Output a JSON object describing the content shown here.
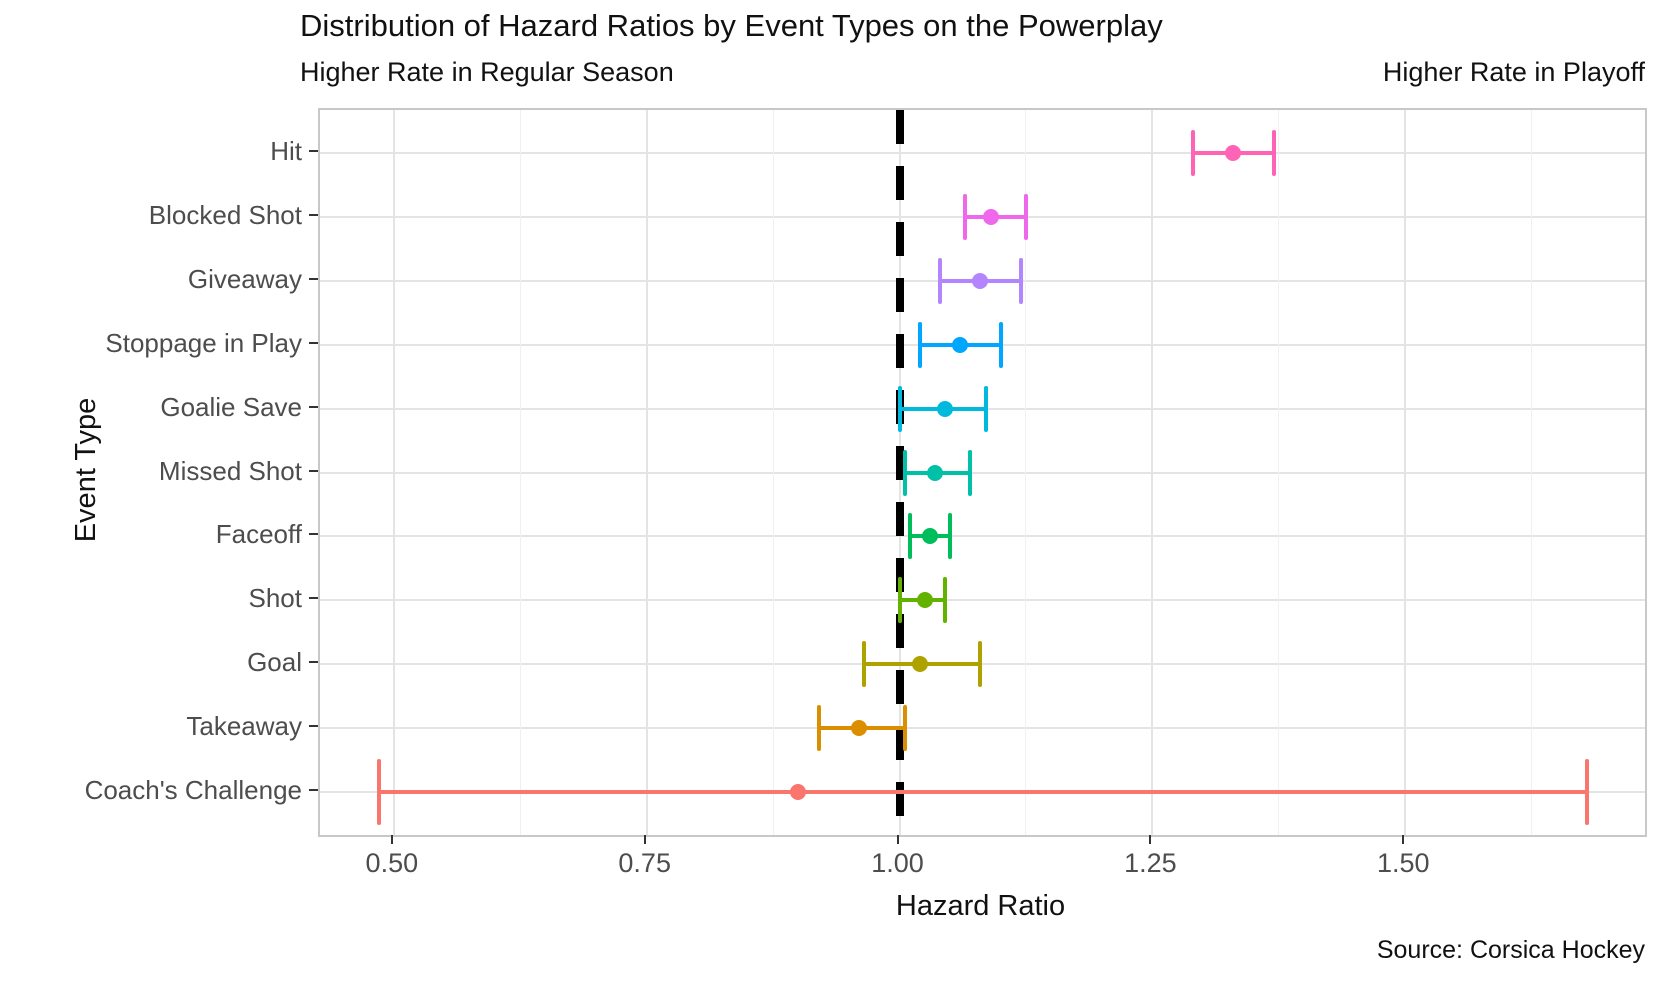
{
  "chart_data": {
    "type": "scatter",
    "subtype": "horizontal-dot-plot-with-error-bars",
    "title": "Distribution of Hazard Ratios by Event Types on the Powerplay",
    "subtitle_left": "Higher Rate in Regular Season",
    "subtitle_right": "Higher Rate in Playoff",
    "xlabel": "Hazard Ratio",
    "ylabel": "Event Type",
    "caption": "Source: Corsica Hockey",
    "xlim": [
      0.427,
      1.737
    ],
    "x_ticks": [
      "0.50",
      "0.75",
      "1.00",
      "1.25",
      "1.50"
    ],
    "x_tick_values": [
      0.5,
      0.75,
      1.0,
      1.25,
      1.5
    ],
    "x_minor_values": [
      0.625,
      0.875,
      1.125,
      1.375,
      1.625
    ],
    "grid": true,
    "legend": "none",
    "reference_line": {
      "x": 1.0,
      "style": "dashed",
      "color": "#000000"
    },
    "categories": [
      "Hit",
      "Blocked Shot",
      "Giveaway",
      "Stoppage in Play",
      "Goalie Save",
      "Missed Shot",
      "Faceoff",
      "Shot",
      "Goal",
      "Takeaway",
      "Coach's Challenge"
    ],
    "series": [
      {
        "label": "Hit",
        "value": 1.33,
        "ci_low": 1.29,
        "ci_high": 1.37,
        "color": "#FF63B6"
      },
      {
        "label": "Blocked Shot",
        "value": 1.09,
        "ci_low": 1.065,
        "ci_high": 1.125,
        "color": "#EF67EB"
      },
      {
        "label": "Giveaway",
        "value": 1.08,
        "ci_low": 1.04,
        "ci_high": 1.12,
        "color": "#B385FF"
      },
      {
        "label": "Stoppage in Play",
        "value": 1.06,
        "ci_low": 1.02,
        "ci_high": 1.1,
        "color": "#00A6FF"
      },
      {
        "label": "Goalie Save",
        "value": 1.045,
        "ci_low": 1.0,
        "ci_high": 1.085,
        "color": "#00BADE"
      },
      {
        "label": "Missed Shot",
        "value": 1.035,
        "ci_low": 1.005,
        "ci_high": 1.07,
        "color": "#00C1A7"
      },
      {
        "label": "Faceoff",
        "value": 1.03,
        "ci_low": 1.01,
        "ci_high": 1.05,
        "color": "#00BD5C"
      },
      {
        "label": "Shot",
        "value": 1.025,
        "ci_low": 1.0,
        "ci_high": 1.045,
        "color": "#64B200"
      },
      {
        "label": "Goal",
        "value": 1.02,
        "ci_low": 0.965,
        "ci_high": 1.08,
        "color": "#AEA200"
      },
      {
        "label": "Takeaway",
        "value": 0.96,
        "ci_low": 0.92,
        "ci_high": 1.005,
        "color": "#DB8E00"
      },
      {
        "label": "Coach's Challenge",
        "value": 0.9,
        "ci_low": 0.485,
        "ci_high": 1.68,
        "color": "#F8766D"
      }
    ]
  }
}
